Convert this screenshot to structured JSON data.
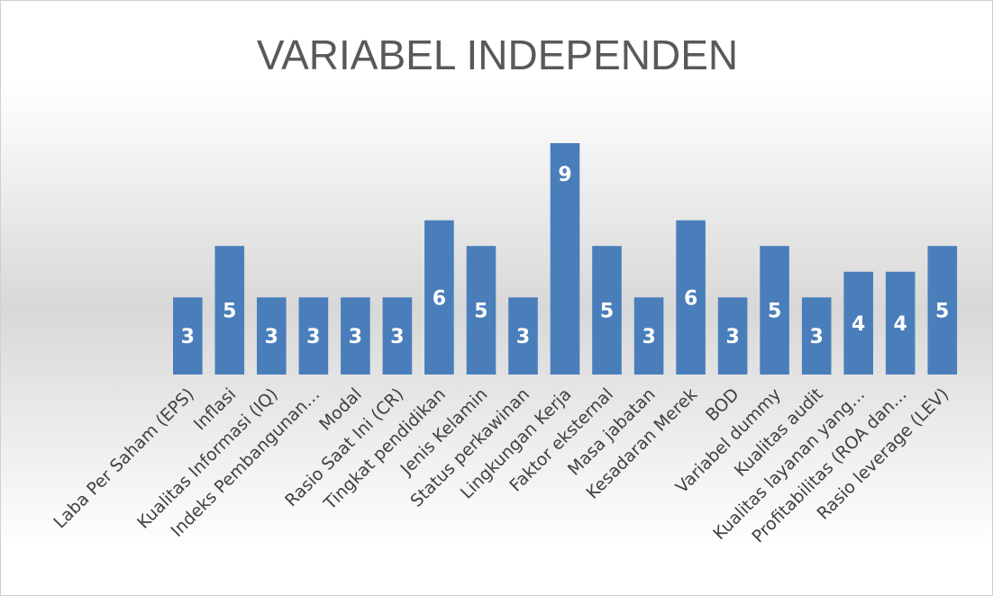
{
  "chart_data": {
    "type": "bar",
    "title": "VARIABEL INDEPENDEN",
    "xlabel": "",
    "ylabel": "",
    "ylim": [
      0,
      9
    ],
    "grid": false,
    "legend": "none",
    "bar_color": "#4a7ebb",
    "categories": [
      "Laba Per Saham (EPS)",
      "Inflasi",
      "Kualitas Informasi (IQ)",
      "Indeks Pembangunan…",
      "Modal",
      "Rasio Saat Ini (CR)",
      "Tingkat pendidikan",
      "Jenis Kelamin",
      "Status perkawinan",
      "Lingkungan Kerja",
      "Faktor eksternal",
      "Masa jabatan",
      "Kesadaran Merek",
      "BOD",
      "Variabel dummy",
      "Kualitas audit",
      "Kualitas layanan yang…",
      "Profitabilitas (ROA dan…",
      "Rasio leverage (LEV)"
    ],
    "values": [
      3,
      5,
      3,
      3,
      3,
      3,
      6,
      5,
      3,
      9,
      5,
      3,
      6,
      3,
      5,
      3,
      4,
      4,
      5
    ]
  }
}
